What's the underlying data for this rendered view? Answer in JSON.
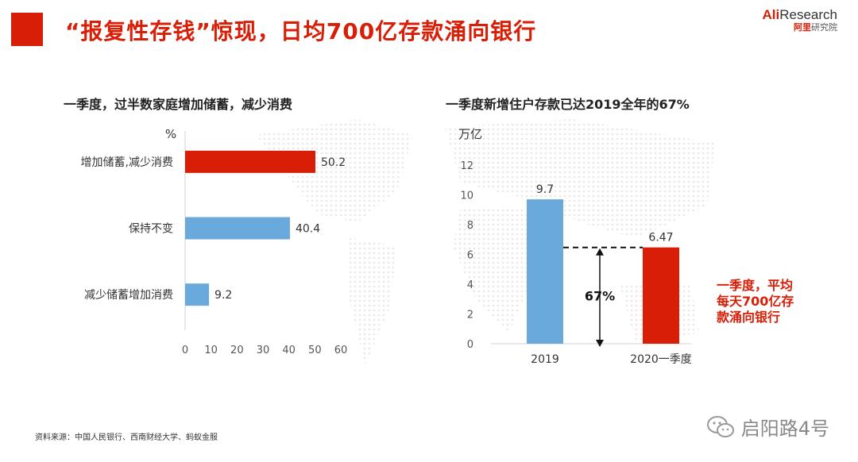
{
  "header": {
    "title": "“报复性存钱”惊现，日均700亿存款涌向银行",
    "accent_color": "#d81e06",
    "logo": {
      "main_ali": "Ali",
      "main_rest": "Research",
      "sub_cn1": "阿里",
      "sub_cn2": "研究院"
    }
  },
  "left_chart": {
    "subtitle": "一季度，过半数家庭增加储蓄，减少消费"
  },
  "right_chart": {
    "subtitle": "一季度新增住户存款已达2019全年的67%"
  },
  "annotation": {
    "lines": [
      "一季度，平均",
      "每天700亿存",
      "款涌向银行"
    ],
    "color": "#d81e06"
  },
  "footer": {
    "source": "资料来源：中国人民银行、西南财经大学、蚂蚁金服",
    "watermark": "启阳路4号",
    "watermark_icon": "wechat-icon"
  },
  "chart_data": [
    {
      "type": "bar",
      "orientation": "horizontal",
      "categories": [
        "增加储蓄,减少消费",
        "保持不变",
        "减少储蓄增加消费"
      ],
      "values": [
        50.2,
        40.4,
        9.2
      ],
      "value_labels": [
        "50.2",
        "40.4",
        "9.2"
      ],
      "colors": [
        "#d81e06",
        "#6aa9dc",
        "#6aa9dc"
      ],
      "unit_label": "%",
      "xlim": [
        0,
        60
      ],
      "xticks": [
        0,
        10,
        20,
        30,
        40,
        50,
        60
      ],
      "grid": false,
      "legend": "none"
    },
    {
      "type": "bar",
      "orientation": "vertical",
      "categories": [
        "2019",
        "2020一季度"
      ],
      "values": [
        9.7,
        6.47
      ],
      "value_labels": [
        "9.7",
        "6.47"
      ],
      "colors": [
        "#6aa9dc",
        "#d81e06"
      ],
      "unit_label": "万亿",
      "ylim": [
        0,
        12
      ],
      "yticks": [
        0,
        2,
        4,
        6,
        8,
        10,
        12
      ],
      "annotations": [
        {
          "text": "67%"
        }
      ],
      "grid": false,
      "legend": "none"
    }
  ]
}
